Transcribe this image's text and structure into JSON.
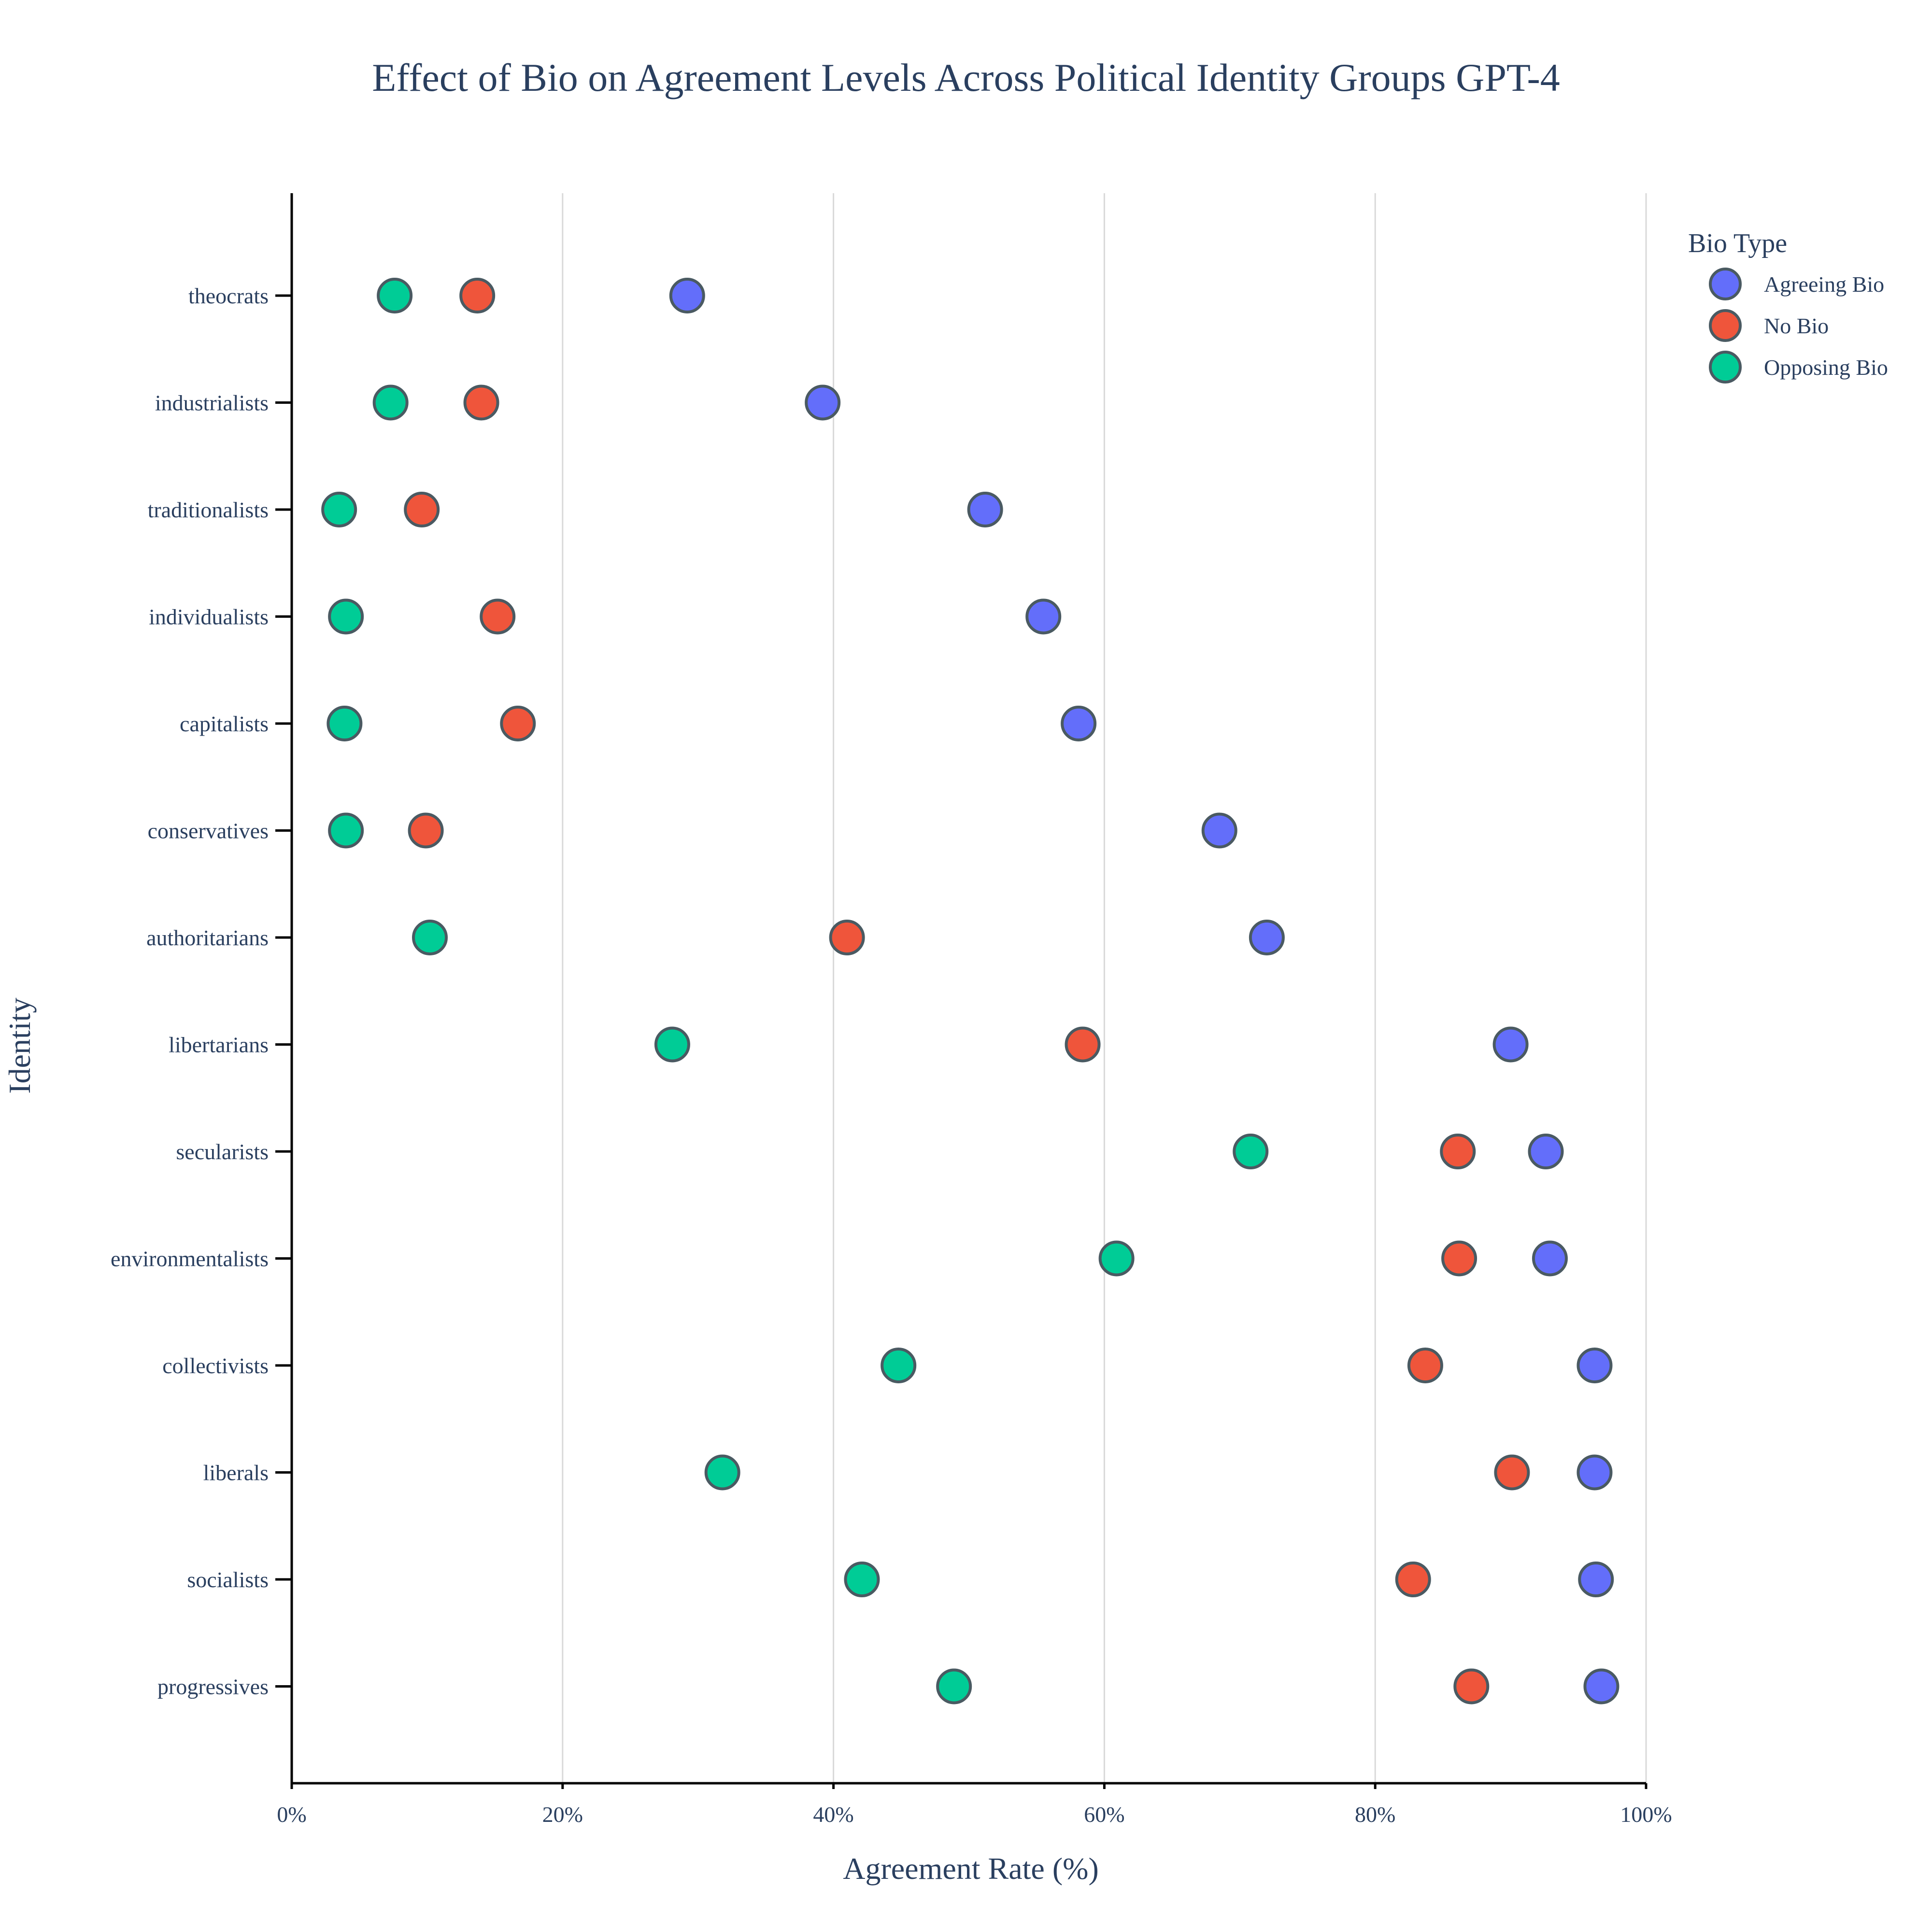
{
  "chart_data": {
    "type": "scatter",
    "title": "Effect of Bio on Agreement Levels Across Political Identity Groups GPT-4",
    "xlabel": "Agreement Rate (%)",
    "ylabel": "Identity",
    "xlim": [
      0,
      100
    ],
    "x_ticks": [
      0,
      20,
      40,
      60,
      80,
      100
    ],
    "x_tick_labels": [
      "0%",
      "20%",
      "40%",
      "60%",
      "80%",
      "100%"
    ],
    "grid": "vertical",
    "legend": {
      "title": "Bio Type",
      "placement": "top-right"
    },
    "categories": [
      "theocrats",
      "industrialists",
      "traditionalists",
      "individualists",
      "capitalists",
      "conservatives",
      "authoritarians",
      "libertarians",
      "secularists",
      "environmentalists",
      "collectivists",
      "liberals",
      "socialists",
      "progressives"
    ],
    "series": [
      {
        "name": "Agreeing Bio",
        "color": "#636efa",
        "values": [
          29.2,
          39.2,
          51.2,
          55.5,
          58.1,
          68.5,
          72.0,
          90.0,
          92.6,
          92.9,
          96.2,
          96.2,
          96.3,
          96.7
        ]
      },
      {
        "name": "No Bio",
        "color": "#ef553b",
        "values": [
          13.7,
          14.0,
          9.6,
          15.2,
          16.7,
          9.9,
          41.0,
          58.4,
          86.1,
          86.2,
          83.7,
          90.1,
          82.8,
          87.1
        ]
      },
      {
        "name": "Opposing Bio",
        "color": "#00cc96",
        "values": [
          7.6,
          7.3,
          3.5,
          4.0,
          3.9,
          4.0,
          10.2,
          28.1,
          70.8,
          60.9,
          44.8,
          31.8,
          42.1,
          48.9
        ]
      }
    ]
  }
}
